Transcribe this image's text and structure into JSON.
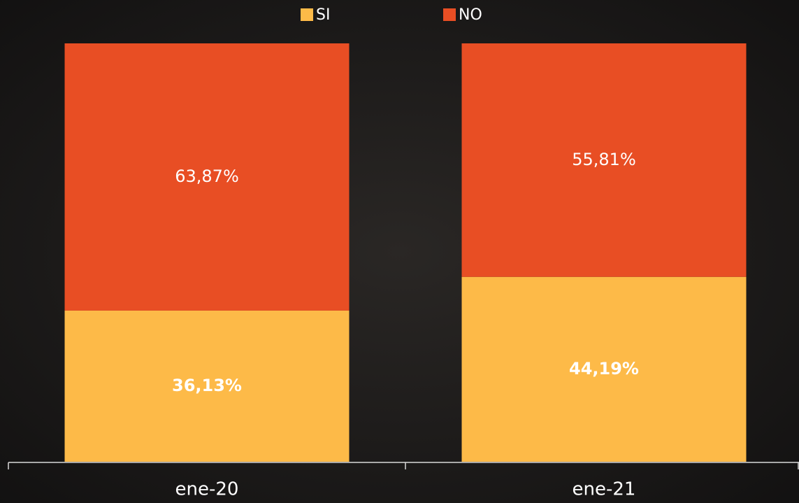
{
  "chart_data": {
    "type": "stacked_bar",
    "categories": [
      "ene-20",
      "ene-21"
    ],
    "series": [
      {
        "name": "SI",
        "color": "#fdba48",
        "values": [
          36.13,
          44.19
        ],
        "value_labels": [
          "36,13%",
          "44,19%"
        ]
      },
      {
        "name": "NO",
        "color": "#e84e24",
        "values": [
          63.87,
          55.81
        ],
        "value_labels": [
          "63,87%",
          "55,81%"
        ]
      }
    ],
    "ylim": [
      0,
      100
    ],
    "legend": "top"
  }
}
